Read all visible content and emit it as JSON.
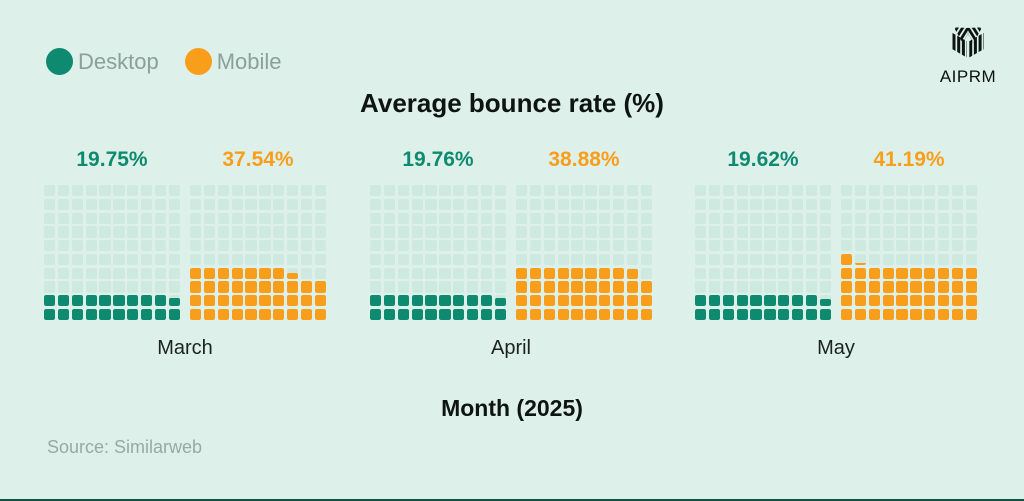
{
  "page": {
    "background_color": "#DEF0EA",
    "bottom_edge_color": "#135044"
  },
  "legend": {
    "items": [
      {
        "label": "Desktop",
        "color": "#0D8A70"
      },
      {
        "label": "Mobile",
        "color": "#F99E1B"
      }
    ]
  },
  "logo": {
    "text": "AIPRM"
  },
  "source": "Source: Similarweb",
  "chart_data": {
    "type": "waffle",
    "title": "Average bounce rate (%)",
    "xlabel": "Month (2025)",
    "grid": {
      "rows": 10,
      "cols": 10,
      "square_value_percent": 1
    },
    "empty_cell_color": "#CEE9E0",
    "legend_position": "top-left",
    "categories": [
      "March",
      "April",
      "May"
    ],
    "series": [
      {
        "name": "Desktop",
        "color": "#0D8A70",
        "values": [
          19.75,
          19.76,
          19.62
        ],
        "labels": [
          "19.75%",
          "19.76%",
          "19.62%"
        ]
      },
      {
        "name": "Mobile",
        "color": "#F99E1B",
        "values": [
          37.54,
          38.88,
          41.19
        ],
        "labels": [
          "37.54%",
          "38.88%",
          "41.19%"
        ]
      }
    ]
  }
}
